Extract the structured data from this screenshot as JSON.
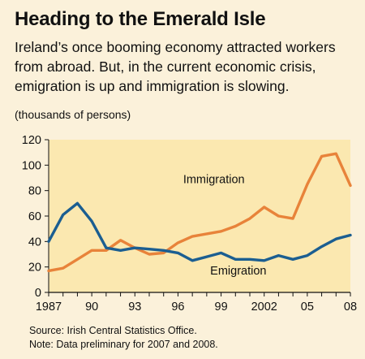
{
  "header": {
    "title": "Heading to the Emerald Isle",
    "subtitle": "Ireland’s once booming economy attracted workers from abroad. But, in the current economic crisis, emigration is up and immigration is slowing.",
    "units": "(thousands of persons)"
  },
  "footer": {
    "source": "Source: Irish Central Statistics Office.",
    "note": "Note: Data preliminary for 2007 and 2008."
  },
  "colors": {
    "plot_background": "#fbe8b0",
    "immigration": "#e8833a",
    "emigration": "#1b5e91",
    "axis": "#111111"
  },
  "chart_data": {
    "type": "line",
    "title": "Heading to the Emerald Isle",
    "ylabel": "(thousands of persons)",
    "ylim": [
      0,
      120
    ],
    "yticks": [
      0,
      20,
      40,
      60,
      80,
      100,
      120
    ],
    "xlim": [
      1987,
      2008
    ],
    "xticks": [
      1987,
      1990,
      1993,
      1996,
      1999,
      2002,
      2005,
      2008
    ],
    "xtick_labels": [
      "1987",
      "90",
      "93",
      "96",
      "99",
      "2002",
      "05",
      "08"
    ],
    "grid": false,
    "x": [
      1987,
      1988,
      1989,
      1990,
      1991,
      1992,
      1993,
      1994,
      1995,
      1996,
      1997,
      1998,
      1999,
      2000,
      2001,
      2002,
      2003,
      2004,
      2005,
      2006,
      2007,
      2008
    ],
    "series": [
      {
        "name": "Immigration",
        "color": "#e8833a",
        "values": [
          17,
          19,
          26,
          33,
          33,
          41,
          35,
          30,
          31,
          39,
          44,
          46,
          48,
          52,
          58,
          67,
          60,
          58,
          85,
          107,
          109,
          84
        ]
      },
      {
        "name": "Emigration",
        "color": "#1b5e91",
        "values": [
          40,
          61,
          70,
          56,
          35,
          33,
          35,
          34,
          33,
          31,
          25,
          28,
          31,
          26,
          26,
          25,
          29,
          26,
          29,
          36,
          42,
          45
        ]
      }
    ]
  }
}
